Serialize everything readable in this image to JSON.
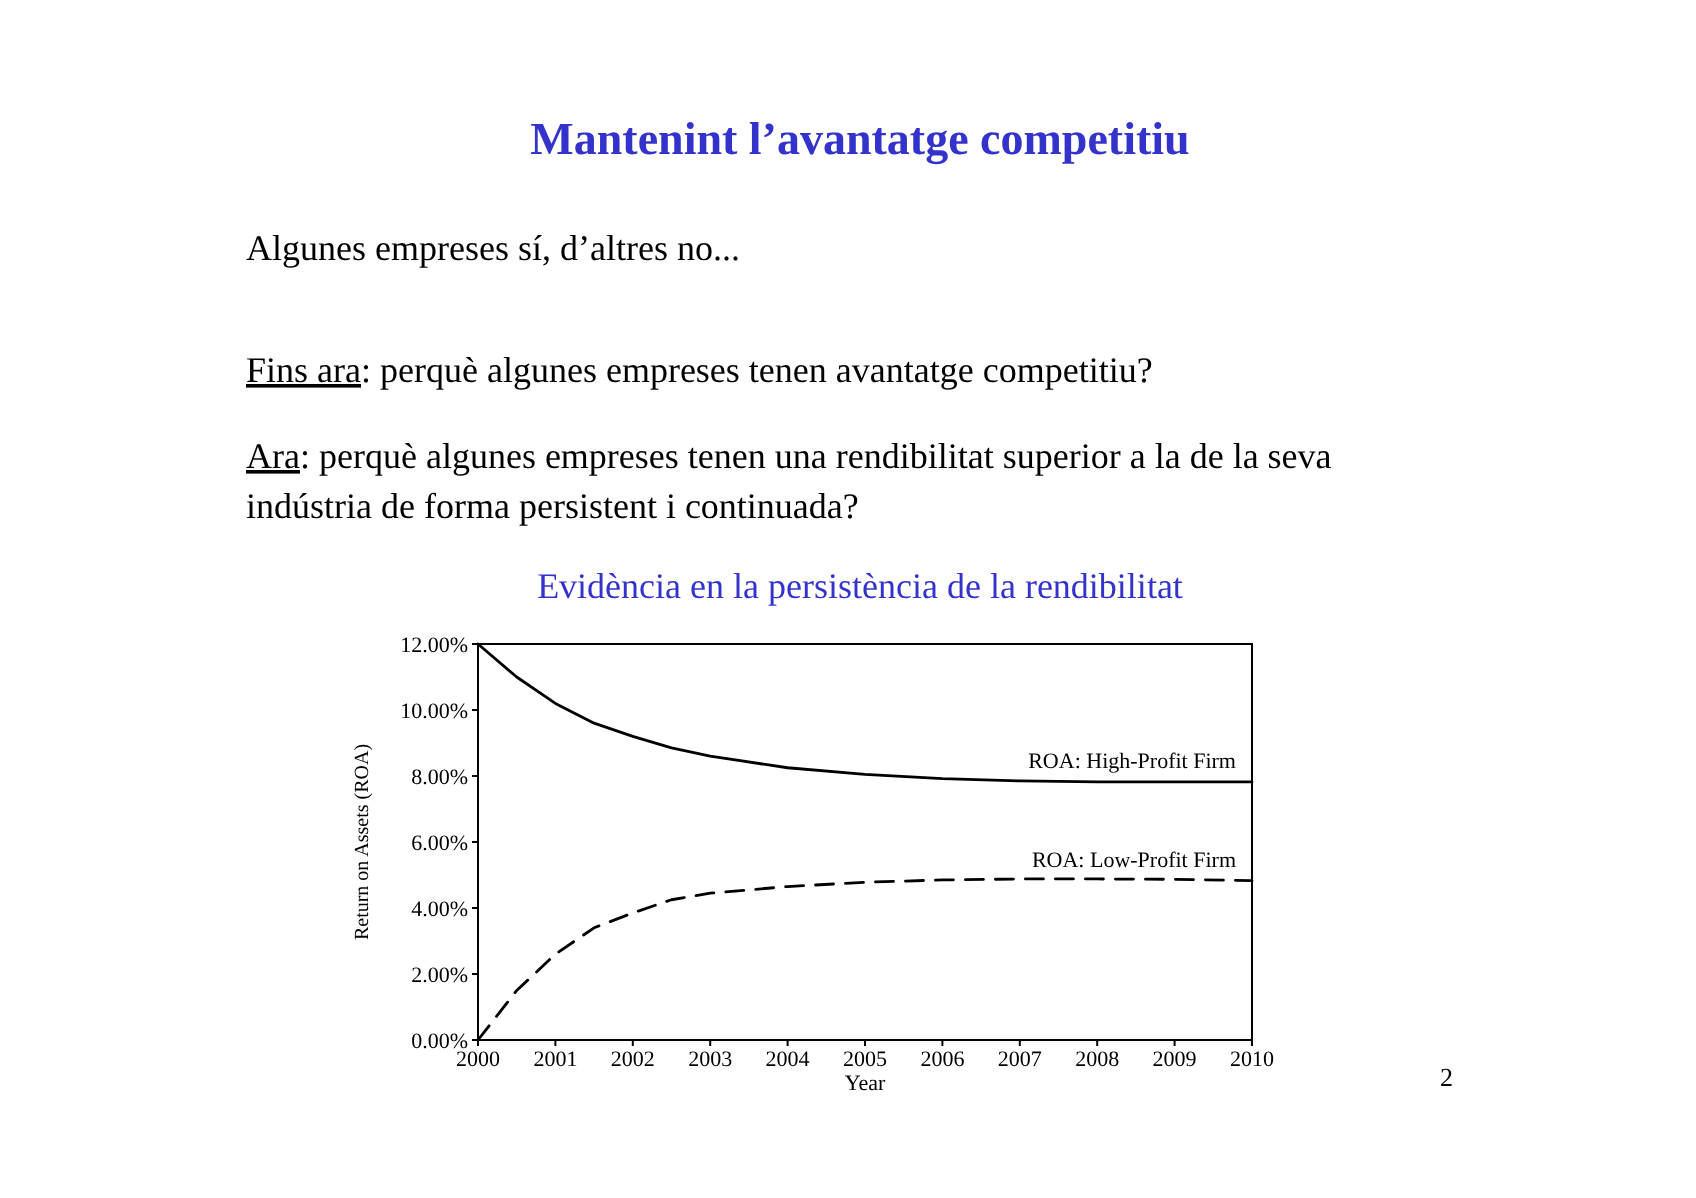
{
  "chart_data": {
    "type": "line",
    "title": "Mantenint l’avantatge competitiu",
    "subtitle": "Evidència en la persistència de la rendibilitat",
    "xlabel": "Year",
    "ylabel": "Return on Assets (ROA)",
    "annotations": [
      "Algunes empreses sí, d’altres no...",
      "Fins ara: perquè algunes empreses tenen avantatge competitiu?",
      "Ara: perquè algunes empreses tenen una rendibilitat superior a la de la seva indústria de forma persistent i continuada?",
      "2"
    ],
    "x": [
      2000,
      2000.5,
      2001,
      2001.5,
      2002,
      2002.5,
      2003,
      2004,
      2005,
      2006,
      2007,
      2008,
      2009,
      2010
    ],
    "series": [
      {
        "name": "ROA: High-Profit Firm",
        "color": "#000000",
        "line_style": "solid",
        "values": [
          12,
          11,
          10.2,
          9.6,
          9.2,
          8.85,
          8.6,
          8.25,
          8.05,
          7.92,
          7.85,
          7.82,
          7.82,
          7.82
        ]
      },
      {
        "name": "ROA: Low-Profit Firm",
        "color": "#000000",
        "line_style": "dashed",
        "values": [
          0,
          1.5,
          2.6,
          3.4,
          3.85,
          4.25,
          4.45,
          4.65,
          4.78,
          4.85,
          4.88,
          4.88,
          4.87,
          4.83
        ]
      }
    ],
    "xlim": [
      2000,
      2010
    ],
    "xticks": [
      2000,
      2001,
      2002,
      2003,
      2004,
      2005,
      2006,
      2007,
      2008,
      2009,
      2010
    ],
    "ylim": [
      0,
      12
    ],
    "yticks": [
      {
        "value": 0,
        "label": "0.00%"
      },
      {
        "value": 2,
        "label": "2.00%"
      },
      {
        "value": 4,
        "label": "4.00%"
      },
      {
        "value": 6,
        "label": "6.00%"
      },
      {
        "value": 8,
        "label": "8.00%"
      },
      {
        "value": 10,
        "label": "10.00%"
      },
      {
        "value": 12,
        "label": "12.00%"
      }
    ],
    "grid": false
  }
}
